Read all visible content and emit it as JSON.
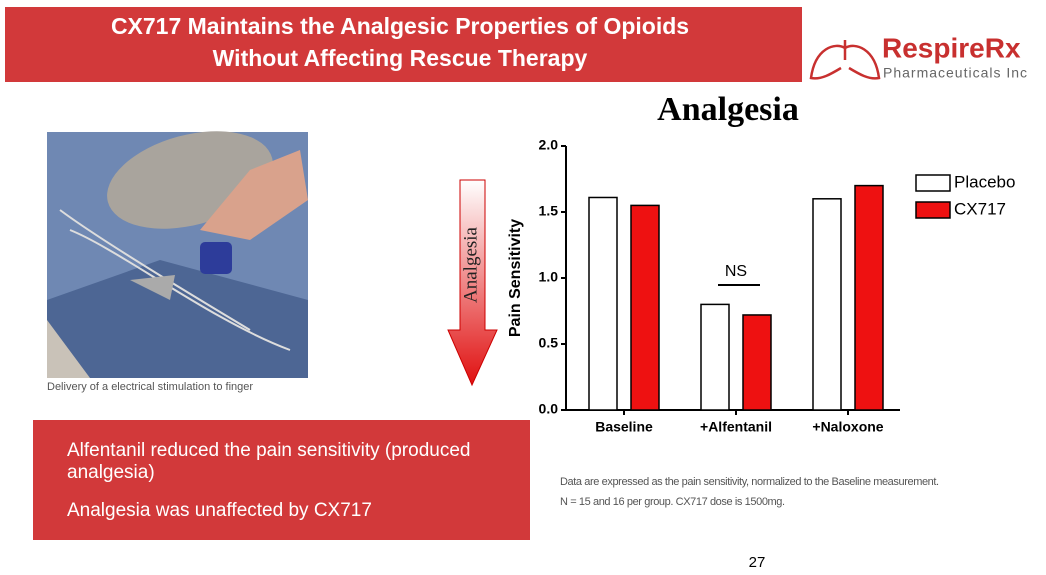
{
  "header": {
    "title_lines": [
      "CX717 Maintains the Analgesic Properties of Opioids",
      "Without Affecting Rescue Therapy"
    ]
  },
  "logo": {
    "name": "RespireRx",
    "subtitle": "Pharmaceuticals Inc"
  },
  "photo": {
    "caption": "Delivery of a electrical stimulation to finger"
  },
  "arrow": {
    "label": "Analgesia"
  },
  "bullets": [
    "Alfentanil reduced the pain sensitivity (produced analgesia)",
    "Analgesia was unaffected by CX717"
  ],
  "footnotes": [
    "Data are expressed as the pain sensitivity, normalized to the Baseline measurement.",
    "N = 15 and 16 per group. CX717 dose is 1500mg."
  ],
  "page_number": "27",
  "chart_data": {
    "type": "bar",
    "title": "Analgesia",
    "y_label": "Pain Sensitivity",
    "categories": [
      "Baseline",
      "+Alfentanil",
      "+Naloxone"
    ],
    "series": [
      {
        "name": "Placebo",
        "color": "#ffffff",
        "values": [
          1.61,
          0.8,
          1.6
        ]
      },
      {
        "name": "CX717",
        "color": "#ee1111",
        "values": [
          1.55,
          0.72,
          1.7
        ]
      }
    ],
    "ylim": [
      0,
      2
    ],
    "yticks": [
      {
        "value": 0,
        "label": "0.0"
      },
      {
        "value": 0.5,
        "label": "0.5"
      },
      {
        "value": 1,
        "label": "1.0"
      },
      {
        "value": 1.5,
        "label": "1.5"
      },
      {
        "value": 2,
        "label": "2.0"
      }
    ],
    "annotation": "NS",
    "legend": "right"
  }
}
